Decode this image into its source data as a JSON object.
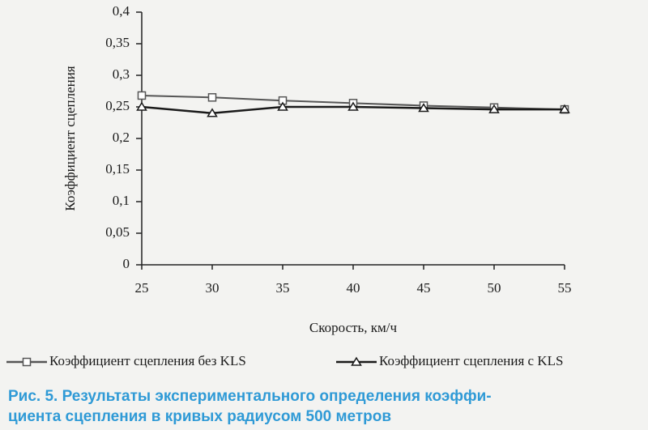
{
  "chart_data": {
    "type": "line",
    "x_label": "Скорость, км/ч",
    "y_label": "Коэффициент сцепления",
    "x": [
      25,
      30,
      35,
      40,
      45,
      50,
      55
    ],
    "series": [
      {
        "name": "Коэффициент сцепления без KLS",
        "color": "#555555",
        "marker": "square",
        "values": [
          0.268,
          0.265,
          0.26,
          0.256,
          0.252,
          0.249,
          0.246
        ]
      },
      {
        "name": "Коэффициент сцепления с KLS",
        "color": "#1a1a1a",
        "marker": "triangle",
        "values": [
          0.25,
          0.24,
          0.25,
          0.25,
          0.248,
          0.246,
          0.246
        ]
      }
    ],
    "xlim": [
      25,
      55
    ],
    "xticks": [
      25,
      30,
      35,
      40,
      45,
      50,
      55
    ],
    "ylim": [
      0,
      0.4
    ],
    "yticks": [
      0,
      {
        "value": 0.05,
        "label": "0,05"
      },
      {
        "value": 0.1,
        "label": "0,1"
      },
      {
        "value": 0.15,
        "label": "0,15"
      },
      {
        "value": 0.2,
        "label": "0,2"
      },
      {
        "value": 0.25,
        "label": "0,25"
      },
      {
        "value": 0.3,
        "label": "0,3"
      },
      {
        "value": 0.35,
        "label": "0,35"
      },
      {
        "value": 0.4,
        "label": "0,4"
      }
    ],
    "grid": false,
    "legend": "bottom",
    "caption": [
      "Рис. 5. Результаты экспериментального определения коэффи-",
      "циента сцепления в кривых радиусом 500 метров"
    ]
  }
}
